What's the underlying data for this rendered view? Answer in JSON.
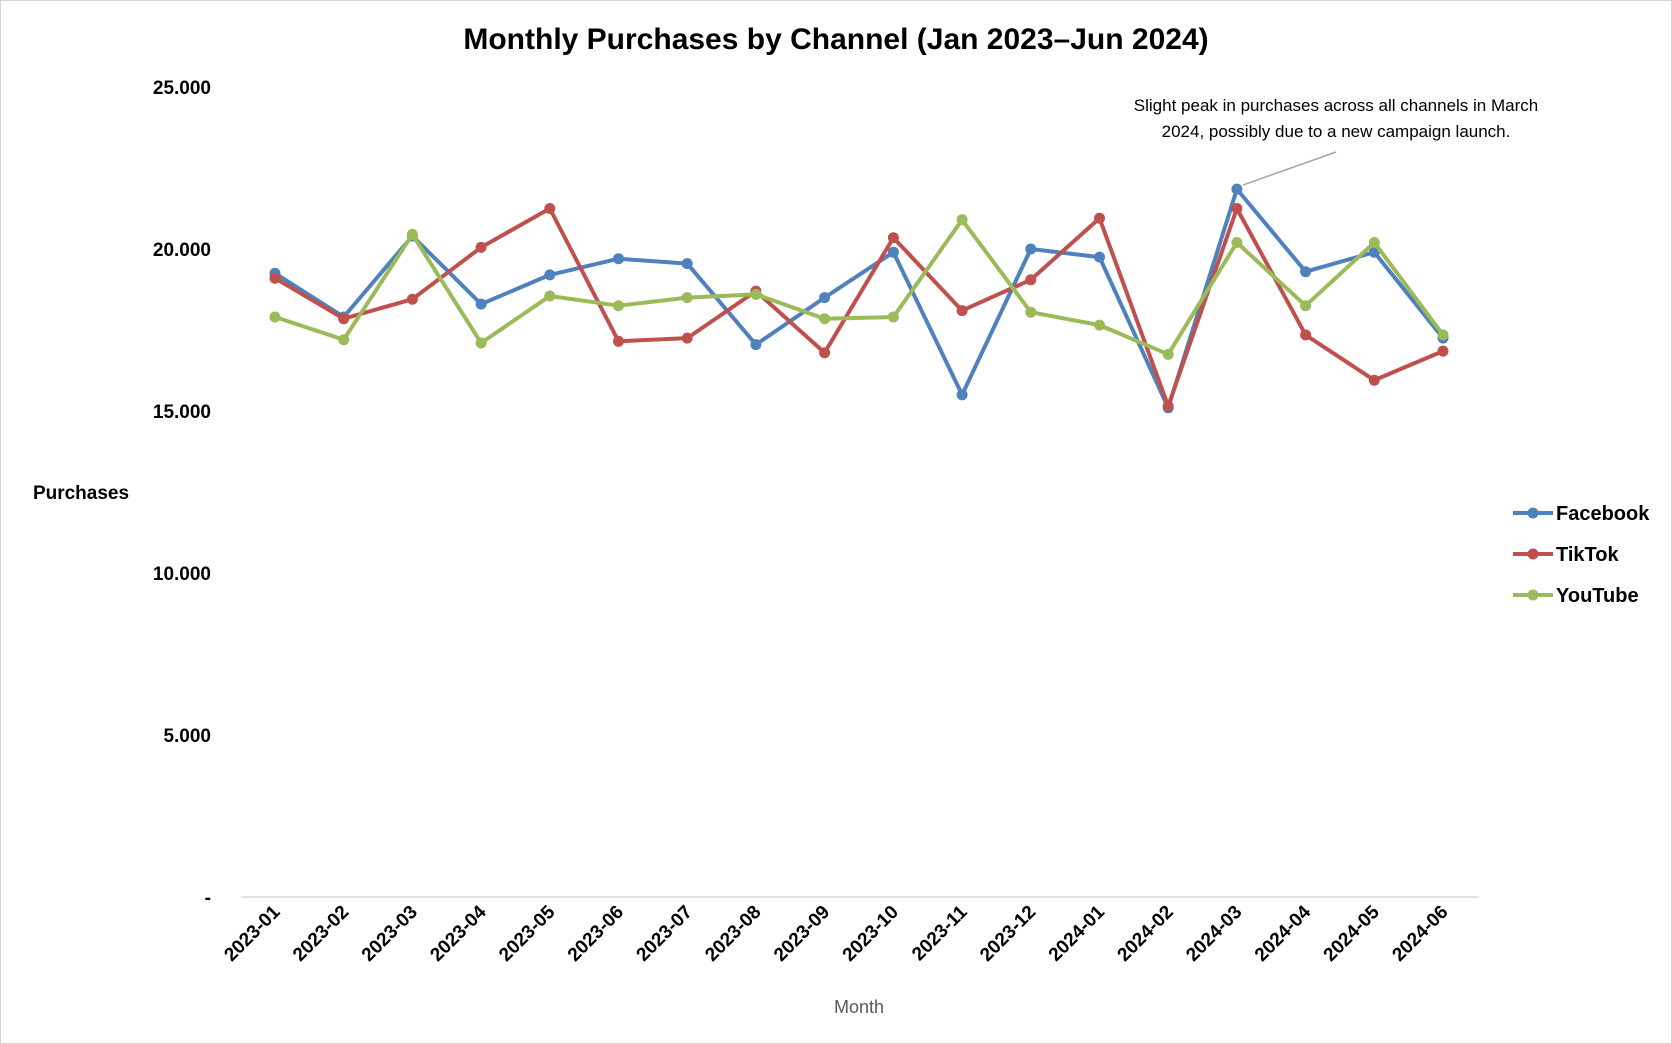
{
  "chart_data": {
    "type": "line",
    "title": "Monthly Purchases by Channel (Jan 2023–Jun 2024)",
    "xlabel": "Month",
    "ylabel": "Purchases",
    "ylim": [
      0,
      25000
    ],
    "y_ticks": [
      {
        "value": 0,
        "label": "-"
      },
      {
        "value": 5000,
        "label": "5.000"
      },
      {
        "value": 10000,
        "label": "10.000"
      },
      {
        "value": 15000,
        "label": "15.000"
      },
      {
        "value": 20000,
        "label": "20.000"
      },
      {
        "value": 25000,
        "label": "25.000"
      }
    ],
    "categories": [
      "2023-01",
      "2023-02",
      "2023-03",
      "2023-04",
      "2023-05",
      "2023-06",
      "2023-07",
      "2023-08",
      "2023-09",
      "2023-10",
      "2023-11",
      "2023-12",
      "2024-01",
      "2024-02",
      "2024-03",
      "2024-04",
      "2024-05",
      "2024-06"
    ],
    "series": [
      {
        "name": "Facebook",
        "color": "#4f81bd",
        "values": [
          19250,
          17900,
          20400,
          18300,
          19200,
          19700,
          19550,
          17050,
          18500,
          19900,
          15500,
          20000,
          19750,
          15100,
          21850,
          19300,
          19900,
          17250
        ]
      },
      {
        "name": "TikTok",
        "color": "#c0504d",
        "values": [
          19100,
          17850,
          18450,
          20050,
          21250,
          17150,
          17250,
          18700,
          16800,
          20350,
          18100,
          19050,
          20950,
          15150,
          21250,
          17350,
          15950,
          16850
        ]
      },
      {
        "name": "YouTube",
        "color": "#9bbb59",
        "values": [
          17900,
          17200,
          20450,
          17100,
          18550,
          18250,
          18500,
          18600,
          17850,
          17900,
          20900,
          18050,
          17650,
          16750,
          20200,
          18250,
          20200,
          17350
        ]
      }
    ],
    "grid": false,
    "legend": "right",
    "annotation": {
      "lines": [
        "Slight peak in purchases across all channels in March",
        "2024, possibly due to a new campaign launch."
      ],
      "category": "2024-03",
      "series": "Facebook"
    }
  }
}
